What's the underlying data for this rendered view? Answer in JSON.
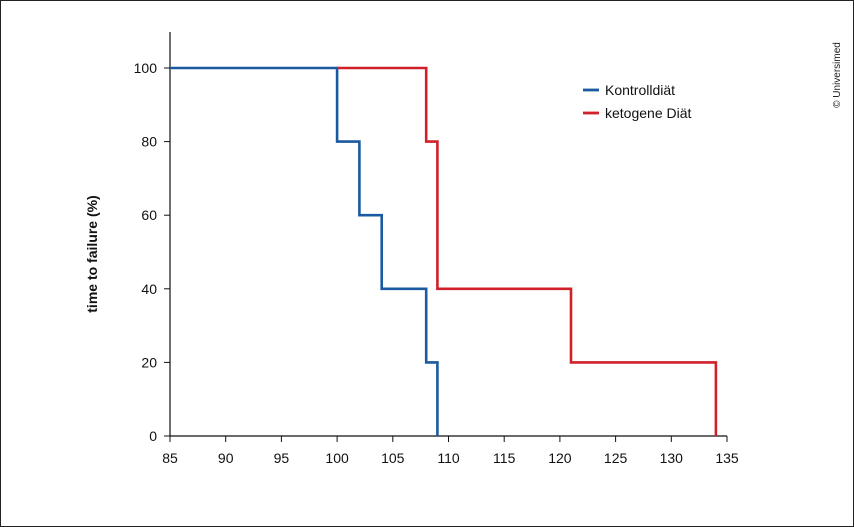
{
  "chart_data": {
    "type": "line",
    "step": true,
    "title": "",
    "xlabel": "",
    "ylabel": "time to failure (%)",
    "xlim": [
      85,
      135
    ],
    "ylim": [
      0,
      110
    ],
    "x_ticks": [
      85,
      90,
      95,
      100,
      105,
      110,
      115,
      120,
      125,
      130,
      135
    ],
    "y_ticks": [
      0,
      20,
      40,
      60,
      80,
      100
    ],
    "grid": false,
    "legend_position": "top-right",
    "series": [
      {
        "name": "Kontrolldiät",
        "color": "#1a5aa0",
        "points": [
          [
            85,
            100
          ],
          [
            100,
            100
          ],
          [
            100,
            80
          ],
          [
            102,
            80
          ],
          [
            102,
            60
          ],
          [
            104,
            60
          ],
          [
            104,
            40
          ],
          [
            108,
            40
          ],
          [
            108,
            20
          ],
          [
            109,
            20
          ],
          [
            109,
            0
          ]
        ]
      },
      {
        "name": "ketogene Diät",
        "color": "#d0202a",
        "points": [
          [
            100,
            100
          ],
          [
            108,
            100
          ],
          [
            108,
            80
          ],
          [
            109,
            80
          ],
          [
            109,
            40
          ],
          [
            121,
            40
          ],
          [
            121,
            20
          ],
          [
            134,
            20
          ],
          [
            134,
            0
          ]
        ]
      }
    ]
  },
  "copyright": "© Universimed"
}
